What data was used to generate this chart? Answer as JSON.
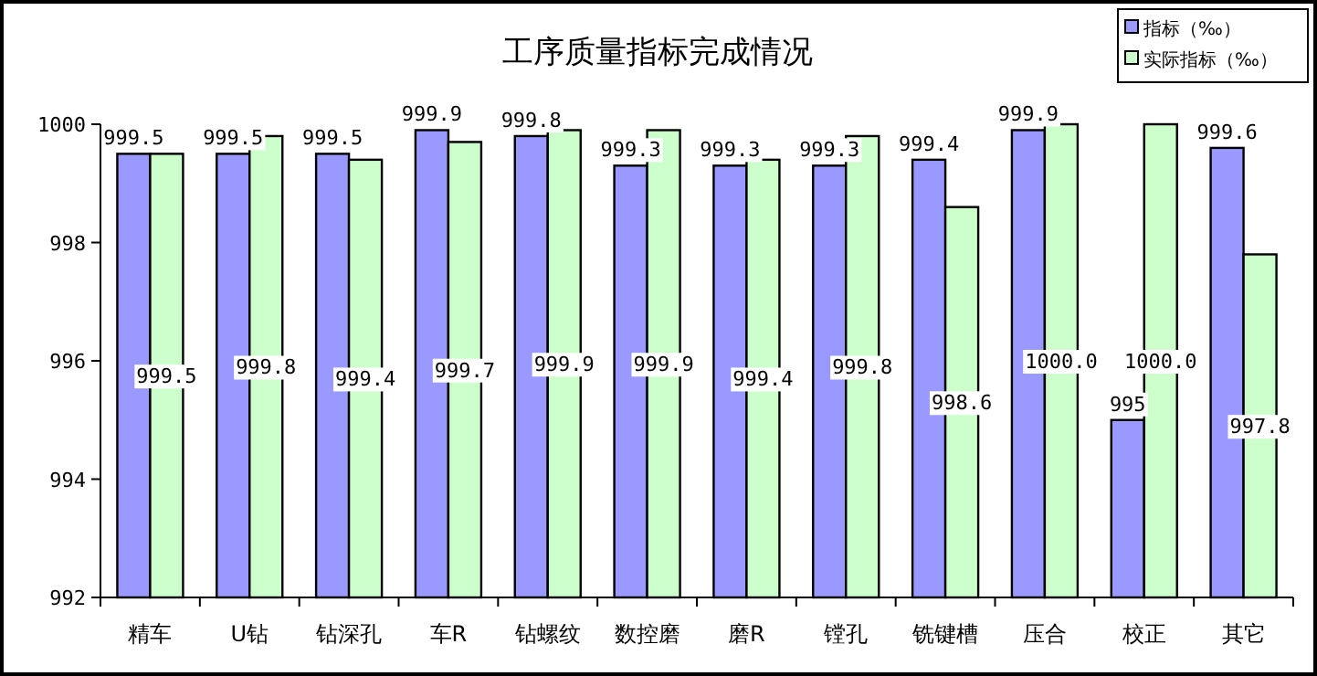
{
  "chart_data": {
    "type": "bar",
    "title": "工序质量指标完成情况",
    "categories": [
      "精车",
      "U钻",
      "钻深孔",
      "车R",
      "钻螺纹",
      "数控磨",
      "磨R",
      "镗孔",
      "铣键槽",
      "压合",
      "校正",
      "其它"
    ],
    "series": [
      {
        "name": "指标（‰）",
        "color": "#9999ff",
        "values": [
          999.5,
          999.5,
          999.5,
          999.9,
          999.8,
          999.3,
          999.3,
          999.3,
          999.4,
          999.9,
          995,
          999.6
        ],
        "value_labels": [
          "999.5",
          "999.5",
          "999.5",
          "999.9",
          "999.8",
          "999.3",
          "999.3",
          "999.3",
          "999.4",
          "999.9",
          "995",
          "999.6"
        ]
      },
      {
        "name": "实际指标（‰）",
        "color": "#ccffcc",
        "values": [
          999.5,
          999.8,
          999.4,
          999.7,
          999.9,
          999.9,
          999.4,
          999.8,
          998.6,
          1000.0,
          1000.0,
          997.8
        ],
        "value_labels": [
          "999.5",
          "999.8",
          "999.4",
          "999.7",
          "999.9",
          "999.9",
          "999.4",
          "999.8",
          "998.6",
          "1000.0",
          "1000.0",
          "997.8"
        ]
      }
    ],
    "ylim": [
      992,
      1000
    ],
    "yticks": [
      992,
      994,
      996,
      998,
      1000
    ],
    "grid": false,
    "legend": "top right"
  }
}
